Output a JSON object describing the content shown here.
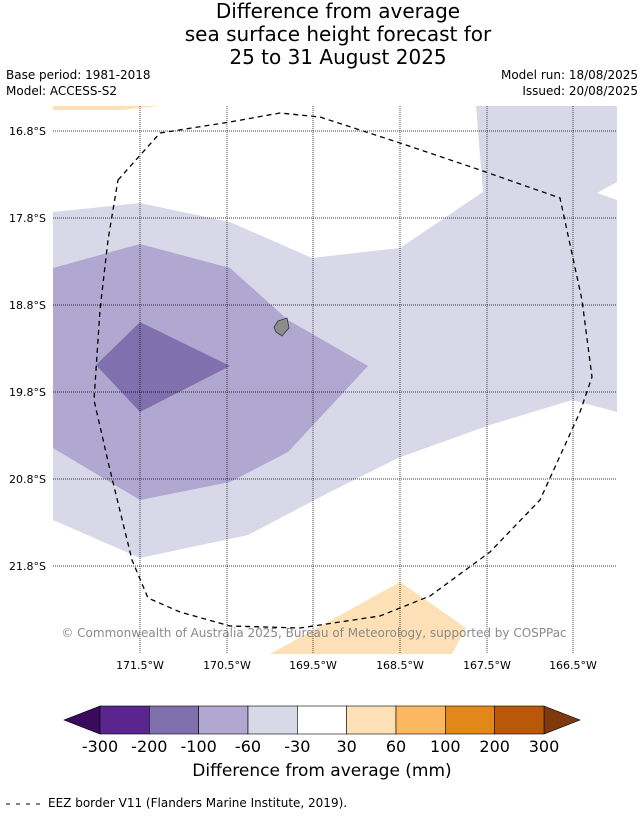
{
  "title": {
    "line1": "Difference from average",
    "line2": "sea surface height forecast for",
    "line3": "25 to 31 August 2025"
  },
  "meta": {
    "base_period": "Base period: 1981-2018",
    "model": "Model: ACCESS-S2",
    "model_run": "Model run: 18/08/2025",
    "issued": "Issued: 20/08/2025"
  },
  "map": {
    "latitude_labels": [
      "16.8°S",
      "17.8°S",
      "18.8°S",
      "19.8°S",
      "20.8°S",
      "21.8°S"
    ],
    "longitude_labels": [
      "171.5°W",
      "170.5°W",
      "169.5°W",
      "168.5°W",
      "167.5°W",
      "166.5°W"
    ],
    "copyright": "© Commonwealth of Australia 2025, Bureau of Meteorology, supported by COSPPac",
    "colors": {
      "land": "#8c8c8c",
      "eez_border": "#000000",
      "gridline": "#000000"
    }
  },
  "colorbar": {
    "title": "Difference from average (mm)",
    "tick_labels": [
      "-300",
      "-200",
      "-100",
      "-60",
      "-30",
      "30",
      "60",
      "100",
      "200",
      "300"
    ],
    "colors": {
      "below_min": "#3a0a5e",
      "bins": [
        "#5b2590",
        "#8070ad",
        "#b0a8d0",
        "#d8d8e8",
        "#ffffff",
        "#fde0b6",
        "#fbb860",
        "#e28818",
        "#b85808"
      ],
      "above_max": "#7e3a0c"
    }
  },
  "legend": {
    "eez_line_text": "EEZ border V11 (Flanders Marine Institute, 2019)."
  }
}
